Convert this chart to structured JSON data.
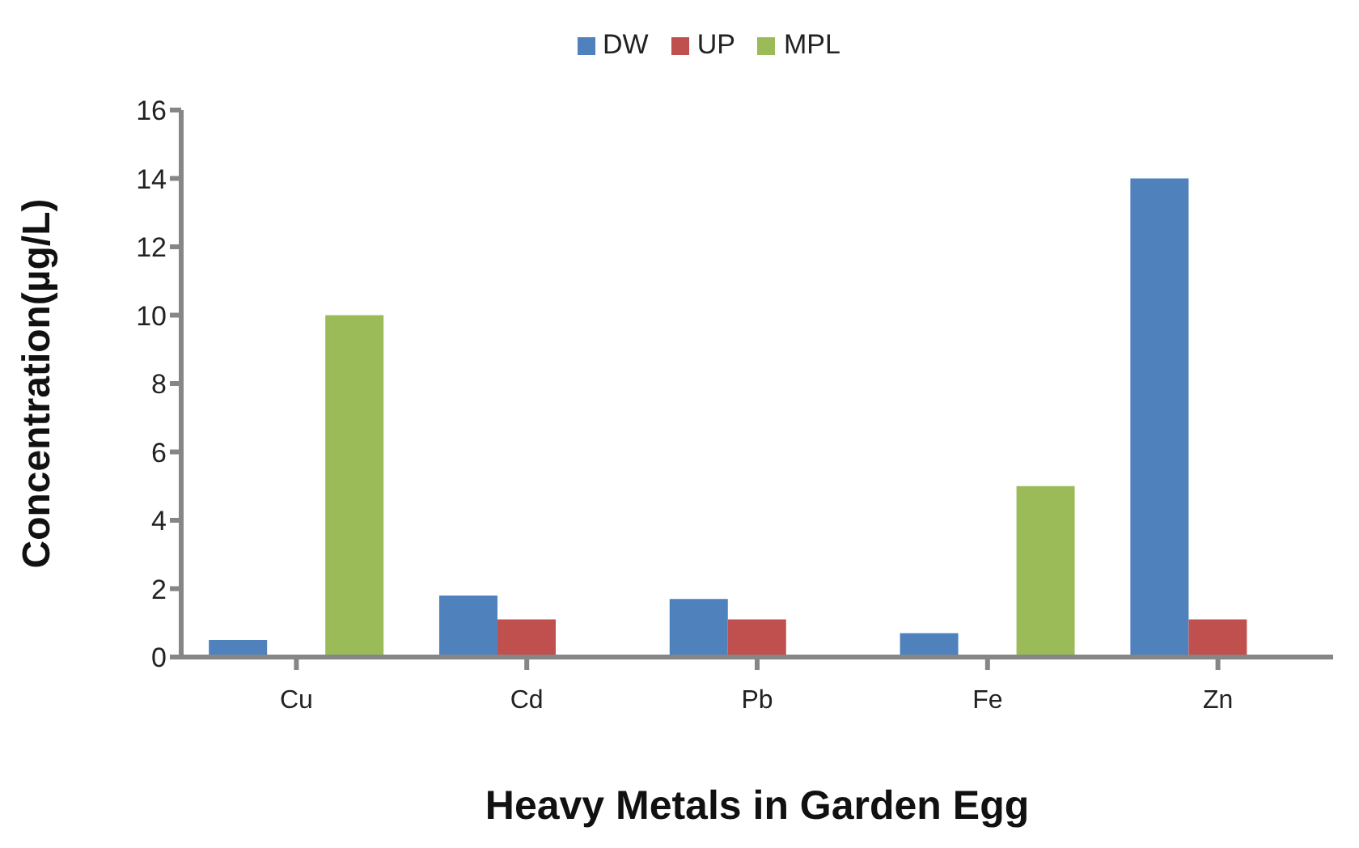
{
  "chart_data": {
    "type": "bar",
    "xlabel": "Heavy Metals in Garden Egg",
    "ylabel": "Concentration(µg/L)",
    "categories": [
      "Cu",
      "Cd",
      "Pb",
      "Fe",
      "Zn"
    ],
    "series": [
      {
        "name": "DW",
        "color": "#4f81bd",
        "values": [
          0.5,
          1.8,
          1.7,
          0.7,
          14
        ]
      },
      {
        "name": "UP",
        "color": "#c0504d",
        "values": [
          0,
          1.1,
          1.1,
          0,
          1.1
        ]
      },
      {
        "name": "MPL",
        "color": "#9bbb59",
        "values": [
          10,
          0,
          0,
          5,
          null
        ]
      }
    ],
    "ylim": [
      0,
      16
    ],
    "yticks": [
      0,
      2,
      4,
      6,
      8,
      10,
      12,
      14,
      16
    ],
    "grid": false,
    "legend": "top"
  }
}
